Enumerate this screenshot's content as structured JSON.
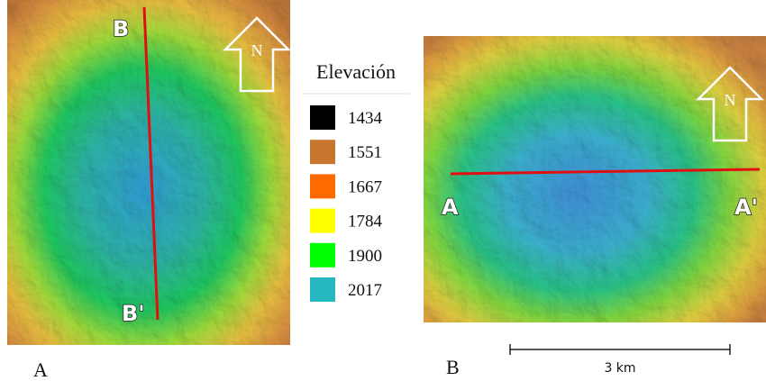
{
  "panels": [
    {
      "label": "A",
      "profile": {
        "start": "B",
        "end": "B'"
      },
      "north": "N"
    },
    {
      "label": "B",
      "profile": {
        "start": "A",
        "end": "A'"
      },
      "north": "N"
    }
  ],
  "legend": {
    "title": "Elevación",
    "items": [
      {
        "value": 1434,
        "color": "#000000"
      },
      {
        "value": 1551,
        "color": "#c8762e"
      },
      {
        "value": 1667,
        "color": "#ff6a00"
      },
      {
        "value": 1784,
        "color": "#ffff00"
      },
      {
        "value": 1900,
        "color": "#00ff00"
      },
      {
        "value": 2017,
        "color": "#25b8c0"
      }
    ]
  },
  "scale_bar": {
    "label": "3 km"
  }
}
